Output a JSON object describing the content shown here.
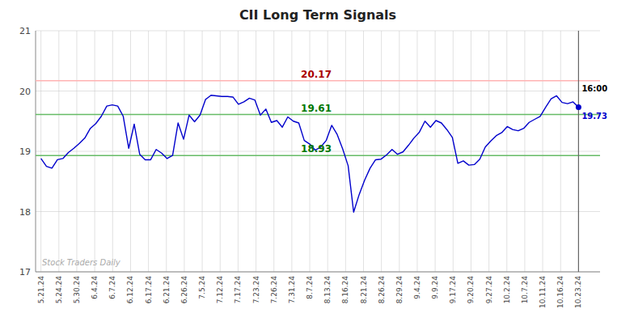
{
  "chart_data": {
    "type": "line",
    "title": "CII Long Term Signals",
    "watermark": "Stock Traders Daily",
    "color": "#0000cc",
    "grid": true,
    "xlim": [
      -0.3,
      31.2
    ],
    "xticks": [
      {
        "value": 0,
        "label": "5.21.24"
      },
      {
        "value": 1,
        "label": "5.24.24"
      },
      {
        "value": 2,
        "label": "5.30.24"
      },
      {
        "value": 3,
        "label": "6.4.24"
      },
      {
        "value": 4,
        "label": "6.7.24"
      },
      {
        "value": 5,
        "label": "6.12.24"
      },
      {
        "value": 6,
        "label": "6.17.24"
      },
      {
        "value": 7,
        "label": "6.21.24"
      },
      {
        "value": 8,
        "label": "6.26.24"
      },
      {
        "value": 9,
        "label": "7.5.24"
      },
      {
        "value": 10,
        "label": "7.12.24"
      },
      {
        "value": 11,
        "label": "7.17.24"
      },
      {
        "value": 12,
        "label": "7.23.24"
      },
      {
        "value": 13,
        "label": "7.26.24"
      },
      {
        "value": 14,
        "label": "7.31.24"
      },
      {
        "value": 15,
        "label": "8.7.24"
      },
      {
        "value": 16,
        "label": "8.13.24"
      },
      {
        "value": 17,
        "label": "8.16.24"
      },
      {
        "value": 18,
        "label": "8.21.24"
      },
      {
        "value": 19,
        "label": "8.26.24"
      },
      {
        "value": 20,
        "label": "8.29.24"
      },
      {
        "value": 21,
        "label": "9.4.24"
      },
      {
        "value": 22,
        "label": "9.9.24"
      },
      {
        "value": 23,
        "label": "9.17.24"
      },
      {
        "value": 24,
        "label": "9.20.24"
      },
      {
        "value": 25,
        "label": "9.27.24"
      },
      {
        "value": 26,
        "label": "10.2.24"
      },
      {
        "value": 27,
        "label": "10.7.24"
      },
      {
        "value": 28,
        "label": "10.11.24"
      },
      {
        "value": 29,
        "label": "10.16.24"
      },
      {
        "value": 30,
        "label": "10.23.24"
      }
    ],
    "ylim": [
      17,
      21
    ],
    "yticks": [
      17,
      18,
      19,
      20,
      21
    ],
    "x": [
      0,
      0.3061,
      0.6122,
      0.9184,
      1.2245,
      1.5306,
      1.8367,
      2.1429,
      2.449,
      2.7551,
      3.0612,
      3.3673,
      3.6735,
      3.9796,
      4.2857,
      4.5918,
      4.898,
      5.2041,
      5.5102,
      5.8163,
      6.1224,
      6.4286,
      6.7347,
      7.0408,
      7.3469,
      7.6531,
      7.9592,
      8.2653,
      8.5714,
      8.8776,
      9.1837,
      9.4898,
      9.7959,
      10.102,
      10.4082,
      10.7143,
      11.0204,
      11.3265,
      11.6327,
      11.9388,
      12.2449,
      12.551,
      12.8571,
      13.1633,
      13.4694,
      13.7755,
      14.0816,
      14.3878,
      14.6939,
      15,
      15.3061,
      15.6122,
      15.9184,
      16.2245,
      16.5306,
      16.8367,
      17.1429,
      17.449,
      17.7551,
      18.0612,
      18.3673,
      18.6735,
      18.9796,
      19.2857,
      19.5918,
      19.898,
      20.2041,
      20.5102,
      20.8163,
      21.1224,
      21.4286,
      21.7347,
      22.0408,
      22.3469,
      22.6531,
      22.9592,
      23.2653,
      23.5714,
      23.8776,
      24.1837,
      24.4898,
      24.7959,
      25.102,
      25.4082,
      25.7143,
      26.0204,
      26.3265,
      26.6327,
      26.9388,
      27.2449,
      27.551,
      27.8571,
      28.1633,
      28.4694,
      28.7755,
      29.0816,
      29.3878,
      29.6939,
      30
    ],
    "values": [
      18.88,
      18.75,
      18.72,
      18.86,
      18.88,
      18.98,
      19.05,
      19.13,
      19.22,
      19.38,
      19.46,
      19.58,
      19.75,
      19.77,
      19.75,
      19.58,
      19.05,
      19.45,
      18.95,
      18.86,
      18.86,
      19.03,
      18.97,
      18.88,
      18.93,
      19.47,
      19.2,
      19.6,
      19.49,
      19.6,
      19.86,
      19.93,
      19.92,
      19.91,
      19.91,
      19.9,
      19.78,
      19.82,
      19.88,
      19.85,
      19.6,
      19.7,
      19.48,
      19.51,
      19.4,
      19.57,
      19.5,
      19.47,
      19.18,
      19.12,
      19.02,
      19.07,
      19.18,
      19.43,
      19.28,
      19.04,
      18.76,
      17.99,
      18.28,
      18.52,
      18.72,
      18.86,
      18.87,
      18.94,
      19.03,
      18.95,
      18.99,
      19.1,
      19.22,
      19.32,
      19.5,
      19.4,
      19.51,
      19.47,
      19.36,
      19.23,
      18.8,
      18.84,
      18.77,
      18.78,
      18.87,
      19.07,
      19.17,
      19.26,
      19.31,
      19.41,
      19.36,
      19.34,
      19.38,
      19.48,
      19.53,
      19.58,
      19.73,
      19.87,
      19.92,
      19.81,
      19.79,
      19.82,
      19.73
    ],
    "hlines": [
      {
        "value": 20.17,
        "color": "#ffb3b3",
        "label_color": "#aa0000"
      },
      {
        "value": 19.61,
        "color": "#66bb66",
        "label_color": "#007700"
      },
      {
        "value": 18.93,
        "color": "#66bb66",
        "label_color": "#007700"
      }
    ],
    "last_time": "16:00",
    "last_price": 19.73
  }
}
